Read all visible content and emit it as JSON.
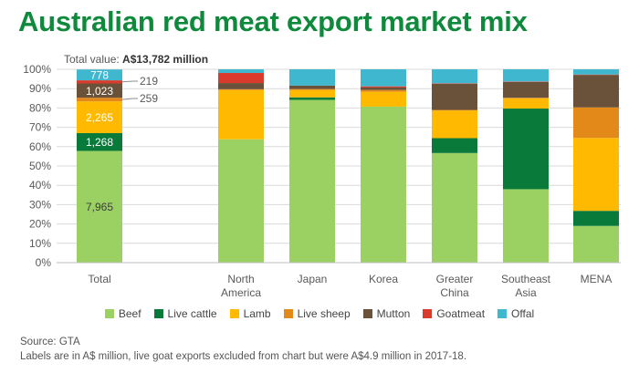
{
  "page": {
    "title": "Australian red meat export market mix",
    "subtitle_prefix": "Total value: ",
    "subtitle_value": "A$13,782 million",
    "source": "Source: GTA",
    "footnote": "Labels are in A$ million, live goat exports excluded from chart but were A$4.9 million in 2017-18."
  },
  "chart_data": {
    "type": "bar",
    "stacked": true,
    "percent_scale": true,
    "categories": [
      "Total",
      "North America",
      "Japan",
      "Korea",
      "Greater China",
      "Southeast Asia",
      "MENA"
    ],
    "category_lines": [
      [
        "Total"
      ],
      [
        "North",
        "America"
      ],
      [
        "Japan"
      ],
      [
        "Korea"
      ],
      [
        "Greater",
        "China"
      ],
      [
        "Southeast",
        "Asia"
      ],
      [
        "MENA"
      ]
    ],
    "y_ticks": [
      "0%",
      "10%",
      "20%",
      "30%",
      "40%",
      "50%",
      "60%",
      "70%",
      "80%",
      "90%",
      "100%"
    ],
    "ylim": [
      0,
      100
    ],
    "grid": true,
    "legend_position": "bottom",
    "series": [
      {
        "name": "Beef",
        "color": "#9bd162",
        "values": [
          57.8,
          63.8,
          84.2,
          80.7,
          56.7,
          38.0,
          19.0
        ]
      },
      {
        "name": "Live cattle",
        "color": "#0a7a3b",
        "values": [
          9.2,
          0,
          1.3,
          0,
          7.7,
          41.7,
          7.8
        ]
      },
      {
        "name": "Lamb",
        "color": "#ffb900",
        "values": [
          16.4,
          25.5,
          3.8,
          7.7,
          14.3,
          5.3,
          37.7
        ]
      },
      {
        "name": "Live sheep",
        "color": "#e3891a",
        "values": [
          1.9,
          0.4,
          0.5,
          0.9,
          0.3,
          0.3,
          15.8
        ]
      },
      {
        "name": "Mutton",
        "color": "#6a5139",
        "values": [
          7.4,
          3.2,
          1.8,
          1.3,
          13.6,
          8.2,
          16.8
        ]
      },
      {
        "name": "Goatmeat",
        "color": "#d93a2b",
        "values": [
          1.6,
          5.2,
          0,
          0.6,
          0.2,
          0.2,
          0.2
        ]
      },
      {
        "name": "Offal",
        "color": "#3fb7cf",
        "values": [
          5.6,
          1.9,
          8.4,
          8.8,
          7.2,
          6.3,
          2.7
        ]
      }
    ],
    "data_labels": [
      {
        "category": "Total",
        "series": "Beef",
        "text": "7,965",
        "placement": "inside"
      },
      {
        "category": "Total",
        "series": "Live cattle",
        "text": "1,268",
        "placement": "inside"
      },
      {
        "category": "Total",
        "series": "Lamb",
        "text": "2,265",
        "placement": "inside"
      },
      {
        "category": "Total",
        "series": "Live sheep",
        "text": "259",
        "placement": "outside"
      },
      {
        "category": "Total",
        "series": "Mutton",
        "text": "1,023",
        "placement": "inside"
      },
      {
        "category": "Total",
        "series": "Goatmeat",
        "text": "219",
        "placement": "outside"
      },
      {
        "category": "Total",
        "series": "Offal",
        "text": "778",
        "placement": "inside"
      }
    ]
  }
}
